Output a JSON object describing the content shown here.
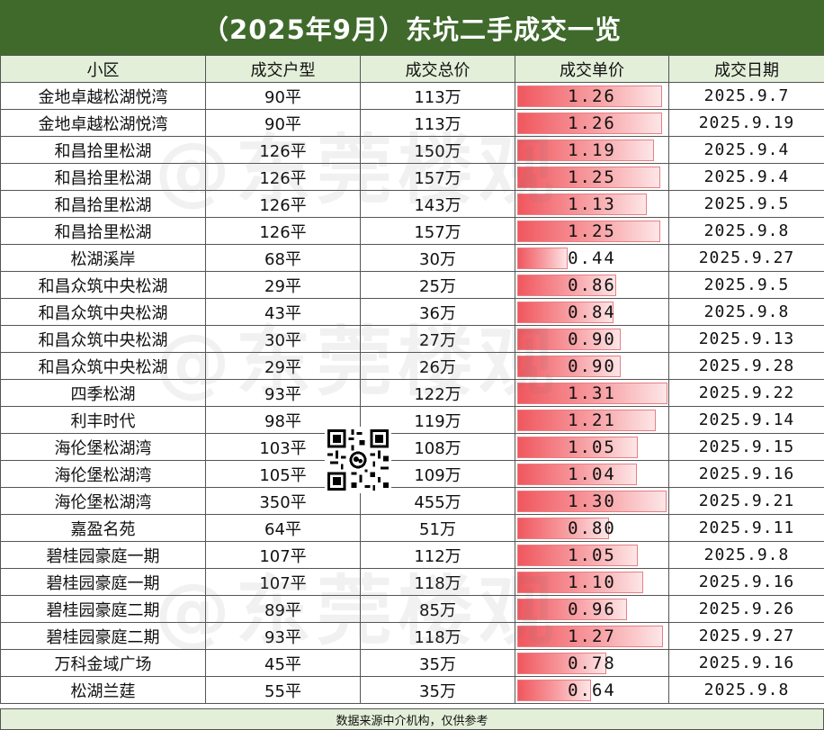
{
  "title": "（2025年9月）东坑二手成交一览",
  "headers": [
    "小区",
    "成交户型",
    "成交总价",
    "成交单价",
    "成交日期"
  ],
  "rows": [
    {
      "community": "金地卓越松湖悦湾",
      "size": "90平",
      "total": "113万",
      "unit_price": "1.26",
      "date": "2025.9.7"
    },
    {
      "community": "金地卓越松湖悦湾",
      "size": "90平",
      "total": "113万",
      "unit_price": "1.26",
      "date": "2025.9.19"
    },
    {
      "community": "和昌拾里松湖",
      "size": "126平",
      "total": "150万",
      "unit_price": "1.19",
      "date": "2025.9.4"
    },
    {
      "community": "和昌拾里松湖",
      "size": "126平",
      "total": "157万",
      "unit_price": "1.25",
      "date": "2025.9.4"
    },
    {
      "community": "和昌拾里松湖",
      "size": "126平",
      "total": "143万",
      "unit_price": "1.13",
      "date": "2025.9.5"
    },
    {
      "community": "和昌拾里松湖",
      "size": "126平",
      "total": "157万",
      "unit_price": "1.25",
      "date": "2025.9.8"
    },
    {
      "community": "松湖溪岸",
      "size": "68平",
      "total": "30万",
      "unit_price": "0.44",
      "date": "2025.9.27"
    },
    {
      "community": "和昌众筑中央松湖",
      "size": "29平",
      "total": "25万",
      "unit_price": "0.86",
      "date": "2025.9.5"
    },
    {
      "community": "和昌众筑中央松湖",
      "size": "43平",
      "total": "36万",
      "unit_price": "0.84",
      "date": "2025.9.8"
    },
    {
      "community": "和昌众筑中央松湖",
      "size": "30平",
      "total": "27万",
      "unit_price": "0.90",
      "date": "2025.9.13"
    },
    {
      "community": "和昌众筑中央松湖",
      "size": "29平",
      "total": "26万",
      "unit_price": "0.90",
      "date": "2025.9.28"
    },
    {
      "community": "四季松湖",
      "size": "93平",
      "total": "122万",
      "unit_price": "1.31",
      "date": "2025.9.22"
    },
    {
      "community": "利丰时代",
      "size": "98平",
      "total": "119万",
      "unit_price": "1.21",
      "date": "2025.9.14"
    },
    {
      "community": "海伦堡松湖湾",
      "size": "103平",
      "total": "108万",
      "unit_price": "1.05",
      "date": "2025.9.15"
    },
    {
      "community": "海伦堡松湖湾",
      "size": "105平",
      "total": "109万",
      "unit_price": "1.04",
      "date": "2025.9.16"
    },
    {
      "community": "海伦堡松湖湾",
      "size": "350平",
      "total": "455万",
      "unit_price": "1.30",
      "date": "2025.9.21"
    },
    {
      "community": "嘉盈名苑",
      "size": "64平",
      "total": "51万",
      "unit_price": "0.80",
      "date": "2025.9.11"
    },
    {
      "community": "碧桂园豪庭一期",
      "size": "107平",
      "total": "112万",
      "unit_price": "1.05",
      "date": "2025.9.8"
    },
    {
      "community": "碧桂园豪庭一期",
      "size": "107平",
      "total": "118万",
      "unit_price": "1.10",
      "date": "2025.9.16"
    },
    {
      "community": "碧桂园豪庭二期",
      "size": "89平",
      "total": "85万",
      "unit_price": "0.96",
      "date": "2025.9.26"
    },
    {
      "community": "碧桂园豪庭二期",
      "size": "93平",
      "total": "118万",
      "unit_price": "1.27",
      "date": "2025.9.27"
    },
    {
      "community": "万科金域广场",
      "size": "45平",
      "total": "35万",
      "unit_price": "0.78",
      "date": "2025.9.16"
    },
    {
      "community": "松湖兰莛",
      "size": "55平",
      "total": "35万",
      "unit_price": "0.64",
      "date": "2025.9.8"
    }
  ],
  "data_bar_max": 1.31,
  "footer": "数据来源中介机构，仅供参考",
  "watermark": "@东莞楼观",
  "colors": {
    "title_bg": "#3f6a2c",
    "header_bg": "#e3efd9",
    "bar": "#f0575e"
  }
}
